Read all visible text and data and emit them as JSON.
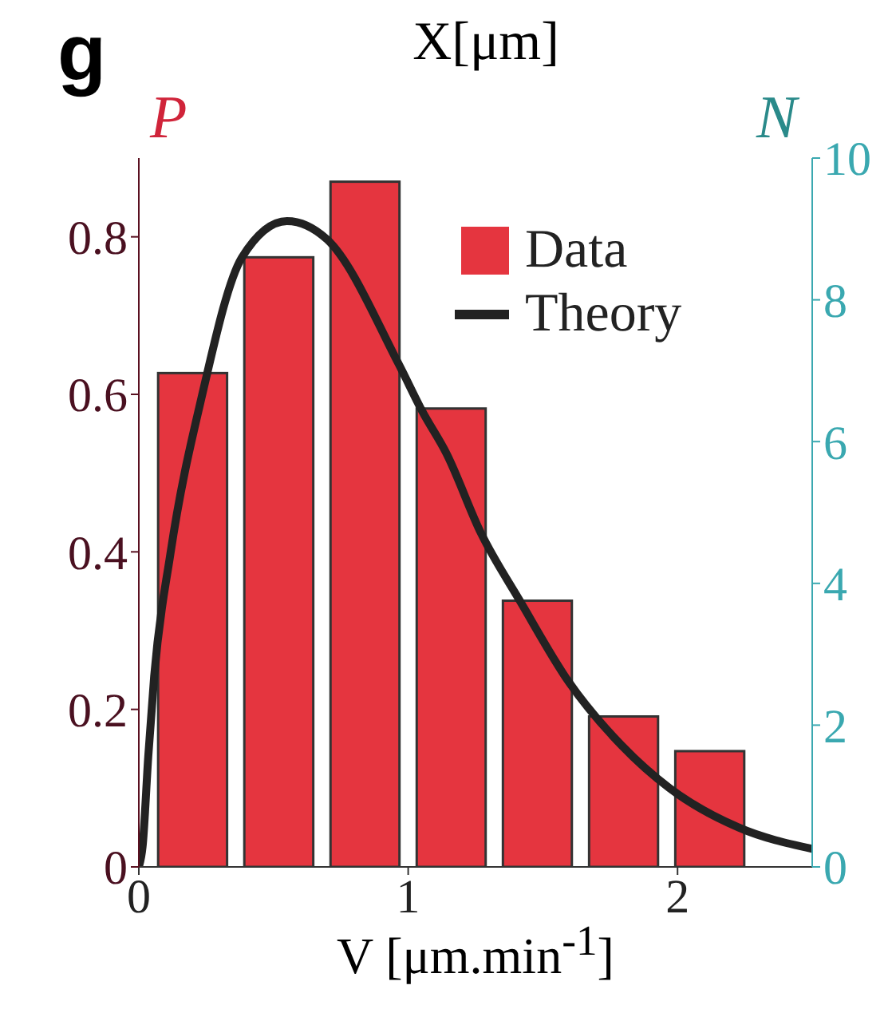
{
  "chart_data": {
    "type": "histogram",
    "title": "g",
    "annotations": [
      "X[μm]"
    ],
    "xlabel": "V [μm.min$^{-1}$]",
    "ylabel": "P",
    "y2label": "N",
    "bins": [
      0.04,
      0.36,
      0.68,
      1.0,
      1.32,
      1.64,
      1.96,
      2.28
    ],
    "series": [
      {
        "name": "Data",
        "color": "#e5353f",
        "values": [
          0.627,
          0.774,
          0.87,
          0.582,
          0.338,
          0.191,
          0.147
        ]
      },
      {
        "name": "Theory",
        "type": "line",
        "color": "#222222",
        "x": [
          0.0,
          0.014,
          0.035,
          0.057,
          0.117,
          0.235,
          0.383,
          0.55,
          0.698,
          0.964,
          1.053,
          1.142,
          1.27,
          1.418,
          1.596,
          1.793,
          1.97,
          2.227,
          2.5
        ],
        "values": [
          0.0,
          0.026,
          0.14,
          0.242,
          0.397,
          0.599,
          0.774,
          0.82,
          0.797,
          0.639,
          0.578,
          0.525,
          0.424,
          0.336,
          0.235,
          0.154,
          0.1,
          0.05,
          0.023
        ]
      }
    ],
    "xlim": [
      0,
      2.5
    ],
    "xticks": [
      0,
      1,
      2
    ],
    "ylim": [
      0,
      0.9
    ],
    "yticks": [
      0,
      0.2,
      0.4,
      0.6,
      0.8
    ],
    "y2lim": [
      0,
      10
    ],
    "y2ticks": [
      0,
      2,
      4,
      6,
      8,
      10
    ],
    "legend": "top right"
  }
}
